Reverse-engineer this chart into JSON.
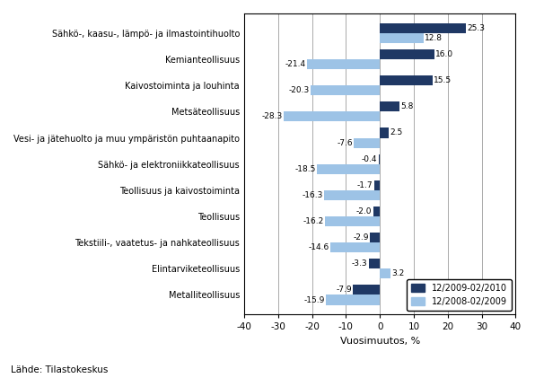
{
  "categories": [
    "Metalliteollisuus",
    "Elintarviketeollisuus",
    "Tekstiili-, vaatetus- ja nahkateollisuus",
    "Teollisuus",
    "Teollisuus ja kaivostoiminta",
    "Sähkö- ja elektroniikkateollisuus",
    "Vesi- ja jätehuolto ja muu ympäristön puhtaanapito",
    "Metsäteollisuus",
    "Kaivostoiminta ja louhinta",
    "Kemianteollisuus",
    "Sähkö-, kaasu-, lämpö- ja ilmastointihuolto"
  ],
  "series1_values": [
    -7.9,
    -3.3,
    -2.9,
    -2.0,
    -1.7,
    -0.4,
    2.5,
    5.8,
    15.5,
    16.0,
    25.3
  ],
  "series2_values": [
    -15.9,
    3.2,
    -14.6,
    -16.2,
    -16.3,
    -18.5,
    -7.6,
    -28.3,
    -20.3,
    -21.4,
    12.8
  ],
  "series1_label": "12/2009-02/2010",
  "series2_label": "12/2008-02/2009",
  "series1_color": "#1F3864",
  "series2_color": "#9DC3E6",
  "xlabel": "Vuosimuutos, %",
  "xlim": [
    -40,
    40
  ],
  "xticks": [
    -40,
    -30,
    -20,
    -10,
    0,
    10,
    20,
    30,
    40
  ],
  "source": "Lähde: Tilastokeskus",
  "background_color": "#FFFFFF",
  "bar_height": 0.38
}
